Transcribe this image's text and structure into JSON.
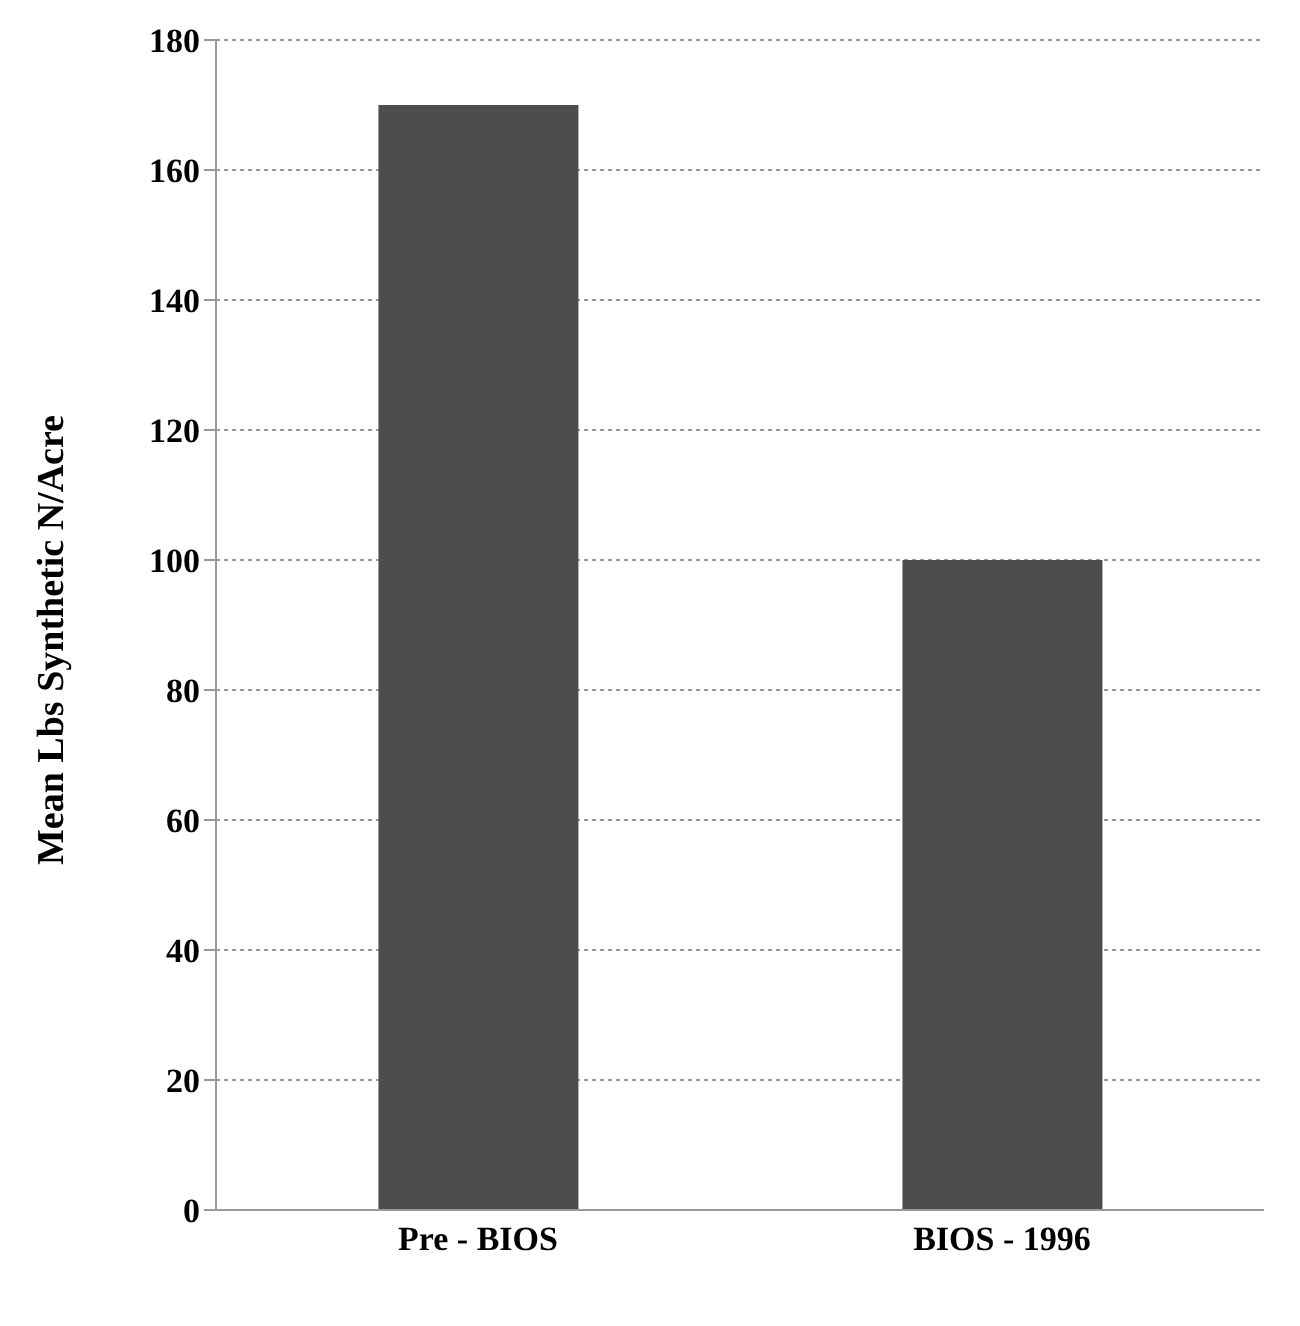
{
  "chart_data": {
    "type": "bar",
    "ylabel": "Mean Lbs Synthetic N/Acre",
    "categories": [
      "Pre - BIOS",
      "BIOS - 1996"
    ],
    "values": [
      170,
      100
    ],
    "color": "#4d4d4d",
    "ylim": [
      0,
      180
    ],
    "yticks": [
      0,
      20,
      40,
      60,
      80,
      100,
      120,
      140,
      160,
      180
    ],
    "grid": "y"
  }
}
